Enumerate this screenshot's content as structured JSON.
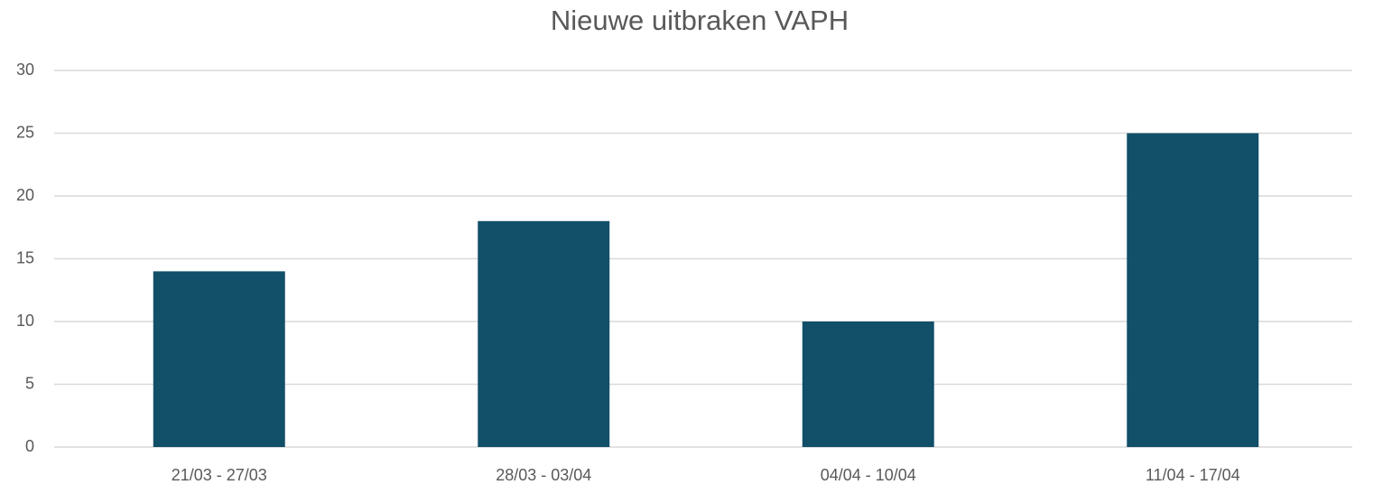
{
  "chart_data": {
    "type": "bar",
    "title": "Nieuwe uitbraken VAPH",
    "categories": [
      "21/03 - 27/03",
      "28/03 - 03/04",
      "04/04 - 10/04",
      "11/04 - 17/04"
    ],
    "values": [
      14,
      18,
      10,
      25
    ],
    "color": "#124f69",
    "ylim": [
      0,
      30
    ],
    "yticks": [
      0,
      5,
      10,
      15,
      20,
      25,
      30
    ],
    "grid": true
  }
}
